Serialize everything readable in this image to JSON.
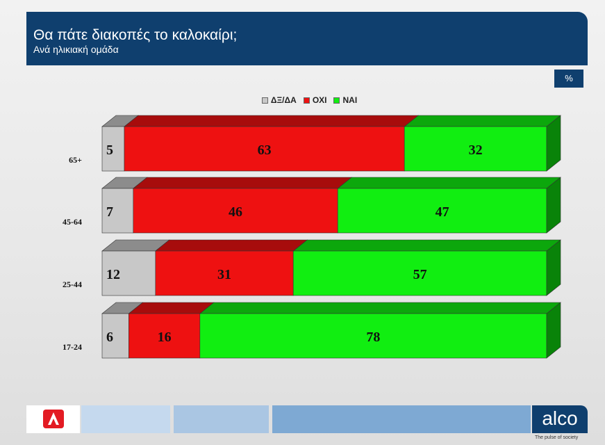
{
  "header": {
    "title": "Θα πάτε διακοπές το καλοκαίρι;",
    "subtitle": "Ανά ηλικιακή ομάδα"
  },
  "unit_badge": "%",
  "footer": {
    "logo_right": "alco",
    "tagline": "The pulse of society"
  },
  "colors": {
    "header_bg": "#0f3f6e",
    "dk": "#c8c8c8",
    "no": "#ee1111",
    "yes": "#11ee11"
  },
  "chart_data": {
    "type": "bar",
    "orientation": "horizontal",
    "stacked": true,
    "title": "Θα πάτε διακοπές το καλοκαίρι;",
    "subtitle": "Ανά ηλικιακή ομάδα",
    "unit": "%",
    "categories": [
      "65+",
      "45-64",
      "25-44",
      "17-24"
    ],
    "series": [
      {
        "name": "ΔΞ/ΔΑ",
        "color": "#c8c8c8",
        "values": [
          5,
          7,
          12,
          6
        ]
      },
      {
        "name": "ΟΧΙ",
        "color": "#ee1111",
        "values": [
          63,
          46,
          31,
          16
        ]
      },
      {
        "name": "ΝΑΙ",
        "color": "#11ee11",
        "values": [
          32,
          47,
          57,
          78
        ]
      }
    ],
    "xlim": [
      0,
      100
    ],
    "legend_position": "top-center",
    "grid": false
  }
}
